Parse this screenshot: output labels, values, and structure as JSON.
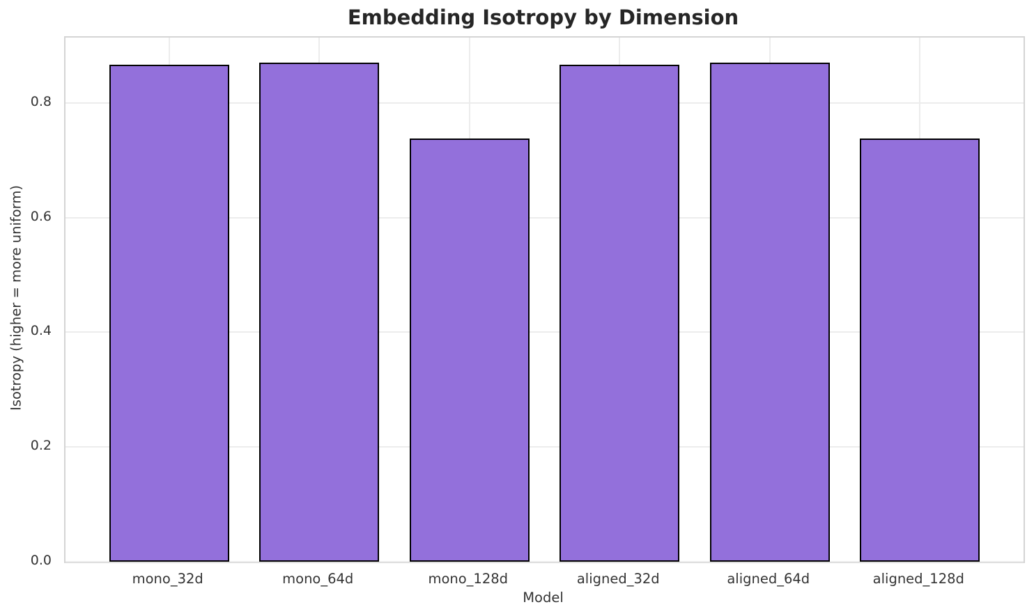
{
  "chart_data": {
    "type": "bar",
    "title": "Embedding Isotropy by Dimension",
    "xlabel": "Model",
    "ylabel": "Isotropy (higher = more uniform)",
    "categories": [
      "mono_32d",
      "mono_64d",
      "mono_128d",
      "aligned_32d",
      "aligned_64d",
      "aligned_128d"
    ],
    "values": [
      0.867,
      0.87,
      0.738,
      0.867,
      0.87,
      0.738
    ],
    "ylim": [
      0,
      0.914
    ],
    "yticks": [
      0.0,
      0.2,
      0.4,
      0.6,
      0.8
    ],
    "ytick_labels": [
      "0.0",
      "0.2",
      "0.4",
      "0.6",
      "0.8"
    ],
    "grid": true,
    "legend": null,
    "bar_color": "#9370DB",
    "bar_edge_color": "#000000",
    "grid_color": "#ececec",
    "spine_color": "#d4d4d4",
    "text_color": "#333333",
    "title_color": "#262626",
    "background_color": "#ffffff"
  }
}
